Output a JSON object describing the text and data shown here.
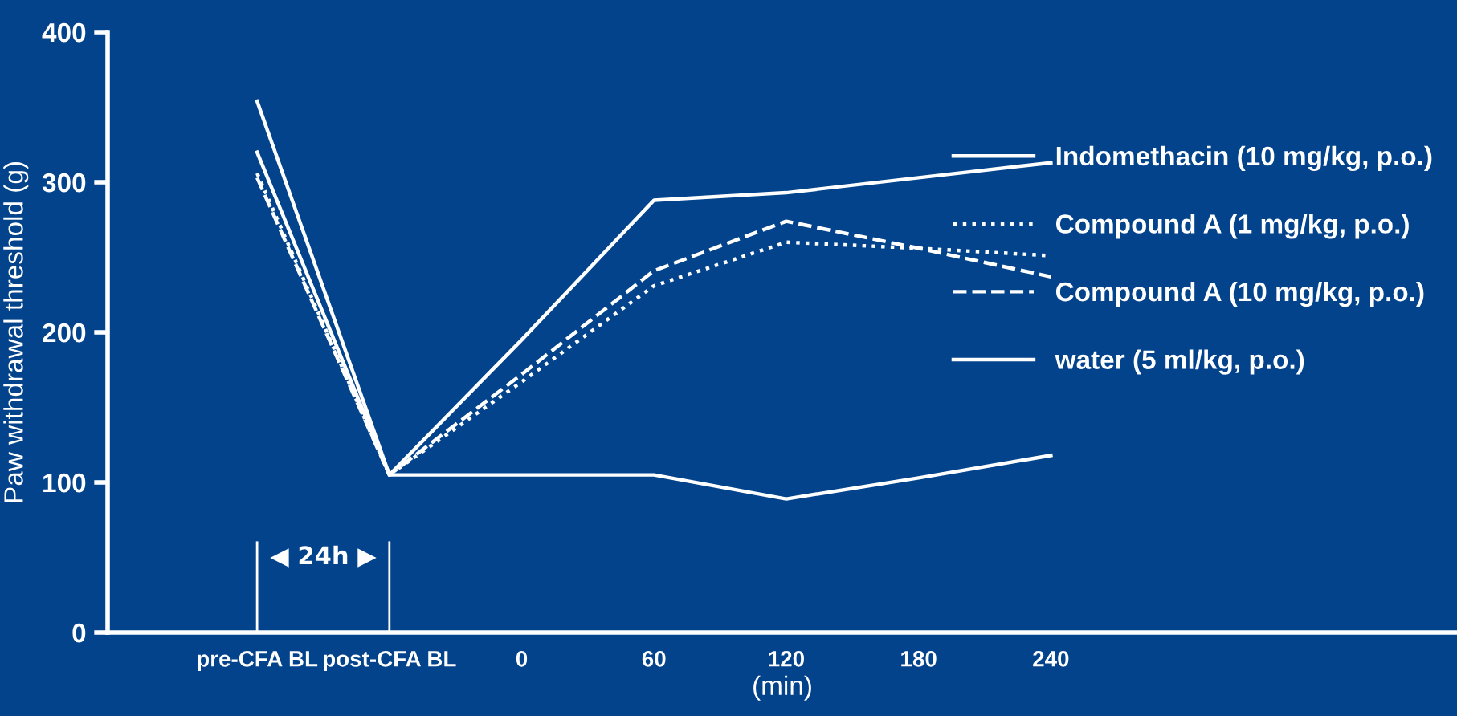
{
  "chart_data": {
    "type": "line",
    "ylabel": "Paw withdrawal threshold (g)",
    "xlabel": "(min)",
    "categories": [
      "pre-CFA BL",
      "post-CFA BL",
      "0",
      "60",
      "120",
      "180",
      "240"
    ],
    "ylim": [
      0,
      400
    ],
    "yticks": [
      0,
      100,
      200,
      300,
      400
    ],
    "grid": false,
    "legend": "right",
    "annotations": [
      "◀ 24h ▶"
    ],
    "series": [
      {
        "name": "Indomethacin (10 mg/kg, p.o.)",
        "color": "#ffffff",
        "line_style": "solid",
        "values": [
          354,
          105,
          195,
          288,
          293,
          303,
          313
        ]
      },
      {
        "name": "Compound A (1 mg/kg, p.o.)",
        "color": "#ffffff",
        "line_style": "dotted",
        "values": [
          306,
          105,
          167,
          231,
          260,
          256,
          251
        ]
      },
      {
        "name": "Compound A (10 mg/kg, p.o.)",
        "color": "#ffffff",
        "line_style": "dashed",
        "values": [
          303,
          105,
          172,
          241,
          274,
          256,
          237
        ]
      },
      {
        "name": "water (5 ml/kg, p.o.)",
        "color": "#ffffff",
        "line_style": "solid",
        "values": [
          320,
          105,
          105,
          105,
          89,
          103,
          118
        ]
      }
    ]
  }
}
